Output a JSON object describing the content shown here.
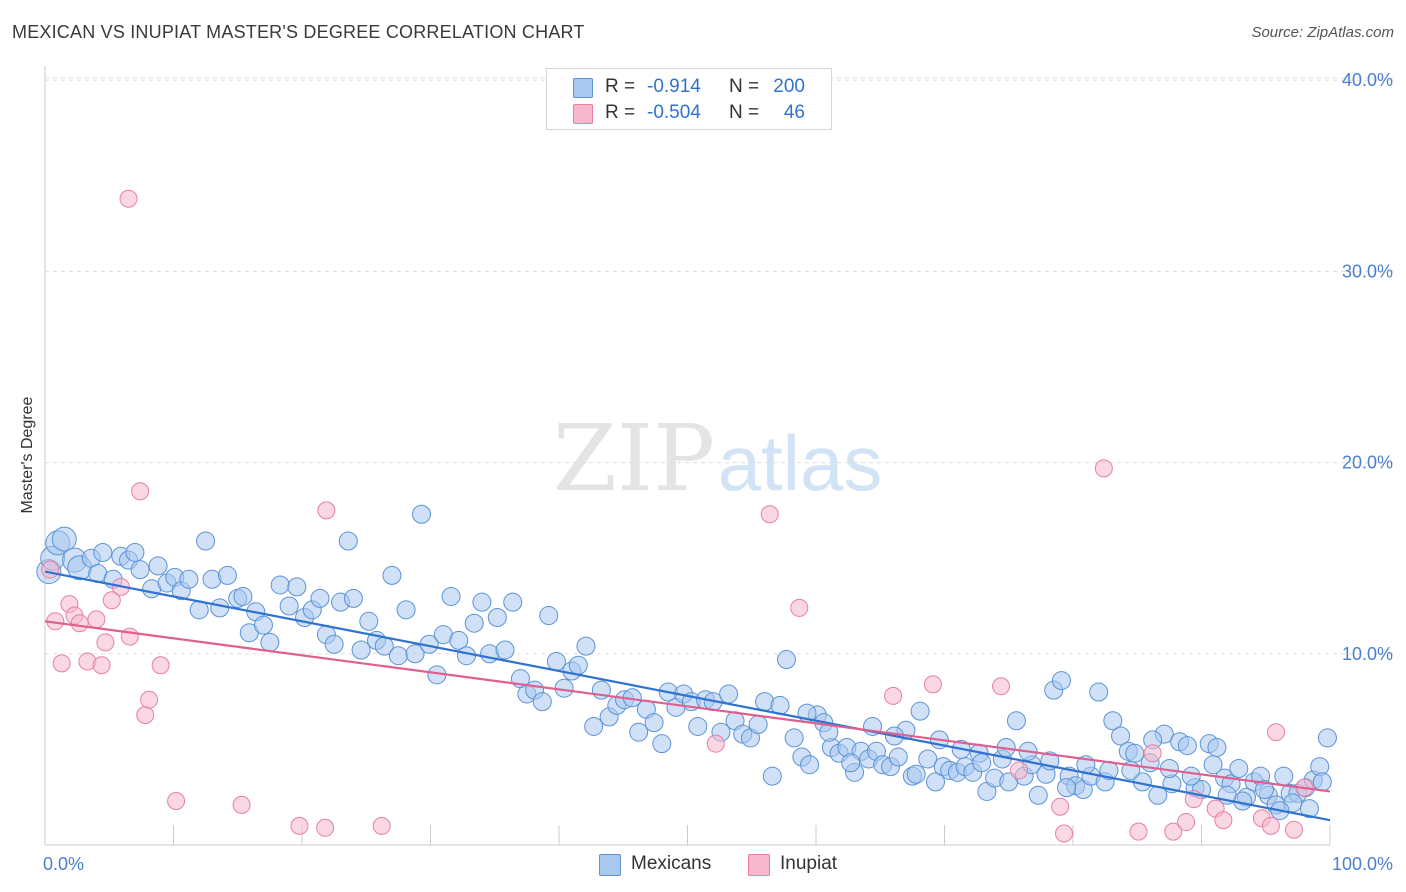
{
  "header": {
    "title": "MEXICAN VS INUPIAT MASTER'S DEGREE CORRELATION CHART",
    "source": "Source: ZipAtlas.com"
  },
  "watermark": {
    "zip": "ZIP",
    "atlas": "atlas"
  },
  "legend_top": {
    "rows": [
      {
        "r_label": "R =",
        "r_value": "-0.914",
        "n_label": "N =",
        "n_value": "200",
        "color": "#a9c8f0"
      },
      {
        "r_label": "R =",
        "r_value": "-0.504",
        "n_label": "N =",
        "n_value": "46",
        "color": "#f5b8cc"
      }
    ]
  },
  "legend_bottom": {
    "items": [
      {
        "label": "Mexicans",
        "color": "#a9c8f0"
      },
      {
        "label": "Inupiat",
        "color": "#f5b8cc"
      }
    ]
  },
  "colors": {
    "blue_fill": "#a9c8f0",
    "blue_stroke": "#5b93d6",
    "blue_line": "#2f72d0",
    "pink_fill": "#f5b8cc",
    "pink_stroke": "#e87fa3",
    "pink_line": "#e05f8e",
    "tick_text": "#4a7fd0",
    "grid": "#dddddd"
  },
  "chart_data": {
    "type": "scatter",
    "title": "MEXICAN VS INUPIAT MASTER'S DEGREE CORRELATION CHART",
    "xlabel": "",
    "ylabel": "Master's Degree",
    "xlim": [
      0,
      100
    ],
    "ylim": [
      0,
      41
    ],
    "x_tick_labels": [
      "0.0%",
      "100.0%"
    ],
    "y_ticks": [
      10,
      20,
      30,
      40
    ],
    "y_tick_labels": [
      "10.0%",
      "20.0%",
      "30.0%",
      "40.0%"
    ],
    "grid": "horizontal dashed",
    "legend": "top-center",
    "series": [
      {
        "name": "Mexicans",
        "r": -0.914,
        "n": 200,
        "trend": {
          "x0": 0,
          "y0": 14.3,
          "x1": 100,
          "y1": 1.3
        },
        "points": [
          [
            0.3,
            14.3
          ],
          [
            0.6,
            15.0
          ],
          [
            1.0,
            15.8
          ],
          [
            1.5,
            16.0
          ],
          [
            2.3,
            14.9
          ],
          [
            2.7,
            14.5
          ],
          [
            3.6,
            15.0
          ],
          [
            4.1,
            14.2
          ],
          [
            4.5,
            15.3
          ],
          [
            5.3,
            13.9
          ],
          [
            5.9,
            15.1
          ],
          [
            6.5,
            14.9
          ],
          [
            7.0,
            15.3
          ],
          [
            7.4,
            14.4
          ],
          [
            8.3,
            13.4
          ],
          [
            8.8,
            14.6
          ],
          [
            9.5,
            13.7
          ],
          [
            10.1,
            14.0
          ],
          [
            10.6,
            13.3
          ],
          [
            11.2,
            13.9
          ],
          [
            12.0,
            12.3
          ],
          [
            12.5,
            15.9
          ],
          [
            13.0,
            13.9
          ],
          [
            13.6,
            12.4
          ],
          [
            14.2,
            14.1
          ],
          [
            15.0,
            12.9
          ],
          [
            15.4,
            13.0
          ],
          [
            15.9,
            11.1
          ],
          [
            16.4,
            12.2
          ],
          [
            17.0,
            11.5
          ],
          [
            17.5,
            10.6
          ],
          [
            18.3,
            13.6
          ],
          [
            19.0,
            12.5
          ],
          [
            19.6,
            13.5
          ],
          [
            20.2,
            11.9
          ],
          [
            20.8,
            12.3
          ],
          [
            21.4,
            12.9
          ],
          [
            21.9,
            11.0
          ],
          [
            22.5,
            10.5
          ],
          [
            23.0,
            12.7
          ],
          [
            23.6,
            15.9
          ],
          [
            24.0,
            12.9
          ],
          [
            24.6,
            10.2
          ],
          [
            25.2,
            11.7
          ],
          [
            25.8,
            10.7
          ],
          [
            26.4,
            10.4
          ],
          [
            27.0,
            14.1
          ],
          [
            27.5,
            9.9
          ],
          [
            28.1,
            12.3
          ],
          [
            28.8,
            10.0
          ],
          [
            29.3,
            17.3
          ],
          [
            29.9,
            10.5
          ],
          [
            30.5,
            8.9
          ],
          [
            31.0,
            11.0
          ],
          [
            31.6,
            13.0
          ],
          [
            32.2,
            10.7
          ],
          [
            32.8,
            9.9
          ],
          [
            33.4,
            11.6
          ],
          [
            34.0,
            12.7
          ],
          [
            34.6,
            10.0
          ],
          [
            35.2,
            11.9
          ],
          [
            35.8,
            10.2
          ],
          [
            36.4,
            12.7
          ],
          [
            37.0,
            8.7
          ],
          [
            37.5,
            7.9
          ],
          [
            38.1,
            8.1
          ],
          [
            38.7,
            7.5
          ],
          [
            39.2,
            12.0
          ],
          [
            39.8,
            9.6
          ],
          [
            40.4,
            8.2
          ],
          [
            41.0,
            9.1
          ],
          [
            41.5,
            9.4
          ],
          [
            42.1,
            10.4
          ],
          [
            42.7,
            6.2
          ],
          [
            43.3,
            8.1
          ],
          [
            43.9,
            6.7
          ],
          [
            44.5,
            7.3
          ],
          [
            45.1,
            7.6
          ],
          [
            45.7,
            7.7
          ],
          [
            46.2,
            5.9
          ],
          [
            46.8,
            7.1
          ],
          [
            47.4,
            6.4
          ],
          [
            48.0,
            5.3
          ],
          [
            48.5,
            8.0
          ],
          [
            49.1,
            7.2
          ],
          [
            49.7,
            7.9
          ],
          [
            50.3,
            7.5
          ],
          [
            50.8,
            6.2
          ],
          [
            51.4,
            7.6
          ],
          [
            52.0,
            7.5
          ],
          [
            52.6,
            5.9
          ],
          [
            53.2,
            7.9
          ],
          [
            53.7,
            6.5
          ],
          [
            54.3,
            5.8
          ],
          [
            54.9,
            5.6
          ],
          [
            55.5,
            6.3
          ],
          [
            56.0,
            7.5
          ],
          [
            56.6,
            3.6
          ],
          [
            57.2,
            7.3
          ],
          [
            57.7,
            9.7
          ],
          [
            58.3,
            5.6
          ],
          [
            58.9,
            4.6
          ],
          [
            59.5,
            4.2
          ],
          [
            60.1,
            6.8
          ],
          [
            60.6,
            6.4
          ],
          [
            61.2,
            5.1
          ],
          [
            61.8,
            4.8
          ],
          [
            62.4,
            5.1
          ],
          [
            63.0,
            3.8
          ],
          [
            63.5,
            4.9
          ],
          [
            64.1,
            4.5
          ],
          [
            64.7,
            4.9
          ],
          [
            65.2,
            4.2
          ],
          [
            65.8,
            4.1
          ],
          [
            66.4,
            4.6
          ],
          [
            67.0,
            6.0
          ],
          [
            67.5,
            3.6
          ],
          [
            68.1,
            7.0
          ],
          [
            68.7,
            4.5
          ],
          [
            69.3,
            3.3
          ],
          [
            69.9,
            4.1
          ],
          [
            70.4,
            3.9
          ],
          [
            71.0,
            3.8
          ],
          [
            71.6,
            4.1
          ],
          [
            72.2,
            3.8
          ],
          [
            72.7,
            4.8
          ],
          [
            73.3,
            2.8
          ],
          [
            73.9,
            3.5
          ],
          [
            74.5,
            4.5
          ],
          [
            75.0,
            3.3
          ],
          [
            75.6,
            6.5
          ],
          [
            76.2,
            3.6
          ],
          [
            76.8,
            4.2
          ],
          [
            77.3,
            2.6
          ],
          [
            77.9,
            3.7
          ],
          [
            78.5,
            8.1
          ],
          [
            79.1,
            8.6
          ],
          [
            79.7,
            3.6
          ],
          [
            80.2,
            3.1
          ],
          [
            80.8,
            2.9
          ],
          [
            81.4,
            3.6
          ],
          [
            82.0,
            8.0
          ],
          [
            82.5,
            3.3
          ],
          [
            83.1,
            6.5
          ],
          [
            83.7,
            5.7
          ],
          [
            84.3,
            4.9
          ],
          [
            84.8,
            4.8
          ],
          [
            85.4,
            3.3
          ],
          [
            86.0,
            4.3
          ],
          [
            86.6,
            2.6
          ],
          [
            87.1,
            5.8
          ],
          [
            87.7,
            3.2
          ],
          [
            88.3,
            5.4
          ],
          [
            88.9,
            5.2
          ],
          [
            89.5,
            3.0
          ],
          [
            90.0,
            2.9
          ],
          [
            90.6,
            5.3
          ],
          [
            91.2,
            5.1
          ],
          [
            91.8,
            3.5
          ],
          [
            92.3,
            3.2
          ],
          [
            92.9,
            4.0
          ],
          [
            93.5,
            2.5
          ],
          [
            94.1,
            3.3
          ],
          [
            94.6,
            3.6
          ],
          [
            95.2,
            2.6
          ],
          [
            95.8,
            2.1
          ],
          [
            96.4,
            3.6
          ],
          [
            96.9,
            2.7
          ],
          [
            97.5,
            2.7
          ],
          [
            98.1,
            3.0
          ],
          [
            98.7,
            3.4
          ],
          [
            99.2,
            4.1
          ],
          [
            99.8,
            5.6
          ],
          [
            99.4,
            3.3
          ],
          [
            98.4,
            1.9
          ],
          [
            97.1,
            2.2
          ],
          [
            96.1,
            1.8
          ],
          [
            94.9,
            2.9
          ],
          [
            93.2,
            2.3
          ],
          [
            92.0,
            2.6
          ],
          [
            90.9,
            4.2
          ],
          [
            89.2,
            3.6
          ],
          [
            87.5,
            4.0
          ],
          [
            86.2,
            5.5
          ],
          [
            84.5,
            3.9
          ],
          [
            82.8,
            3.9
          ],
          [
            81.0,
            4.2
          ],
          [
            79.5,
            3.0
          ],
          [
            78.2,
            4.4
          ],
          [
            76.5,
            4.9
          ],
          [
            74.8,
            5.1
          ],
          [
            72.9,
            4.3
          ],
          [
            71.3,
            5.0
          ],
          [
            69.6,
            5.5
          ],
          [
            67.8,
            3.7
          ],
          [
            66.1,
            5.7
          ],
          [
            64.4,
            6.2
          ],
          [
            62.7,
            4.3
          ],
          [
            61.0,
            5.9
          ],
          [
            59.3,
            6.9
          ]
        ]
      },
      {
        "name": "Inupiat",
        "r": -0.504,
        "n": 46,
        "trend": {
          "x0": 0,
          "y0": 11.7,
          "x1": 100,
          "y1": 2.8
        },
        "points": [
          [
            0.4,
            14.4
          ],
          [
            0.8,
            11.7
          ],
          [
            1.3,
            9.5
          ],
          [
            1.9,
            12.6
          ],
          [
            2.3,
            12.0
          ],
          [
            2.7,
            11.6
          ],
          [
            3.3,
            9.6
          ],
          [
            4.0,
            11.8
          ],
          [
            4.4,
            9.4
          ],
          [
            4.7,
            10.6
          ],
          [
            5.2,
            12.8
          ],
          [
            5.9,
            13.5
          ],
          [
            6.5,
            33.8
          ],
          [
            6.6,
            10.9
          ],
          [
            7.4,
            18.5
          ],
          [
            7.8,
            6.8
          ],
          [
            8.1,
            7.6
          ],
          [
            9.0,
            9.4
          ],
          [
            10.2,
            2.3
          ],
          [
            15.3,
            2.1
          ],
          [
            19.8,
            1.0
          ],
          [
            21.8,
            0.9
          ],
          [
            21.9,
            17.5
          ],
          [
            26.2,
            1.0
          ],
          [
            52.2,
            5.3
          ],
          [
            56.4,
            17.3
          ],
          [
            58.7,
            12.4
          ],
          [
            66.0,
            7.8
          ],
          [
            69.1,
            8.4
          ],
          [
            74.4,
            8.3
          ],
          [
            75.8,
            3.9
          ],
          [
            79.0,
            2.0
          ],
          [
            79.3,
            0.6
          ],
          [
            82.4,
            19.7
          ],
          [
            86.2,
            4.8
          ],
          [
            85.1,
            0.7
          ],
          [
            87.8,
            0.7
          ],
          [
            88.8,
            1.2
          ],
          [
            89.4,
            2.4
          ],
          [
            91.1,
            1.9
          ],
          [
            91.7,
            1.3
          ],
          [
            94.7,
            1.4
          ],
          [
            95.4,
            1.0
          ],
          [
            95.8,
            5.9
          ],
          [
            97.2,
            0.8
          ],
          [
            98.0,
            3.0
          ]
        ]
      }
    ]
  }
}
